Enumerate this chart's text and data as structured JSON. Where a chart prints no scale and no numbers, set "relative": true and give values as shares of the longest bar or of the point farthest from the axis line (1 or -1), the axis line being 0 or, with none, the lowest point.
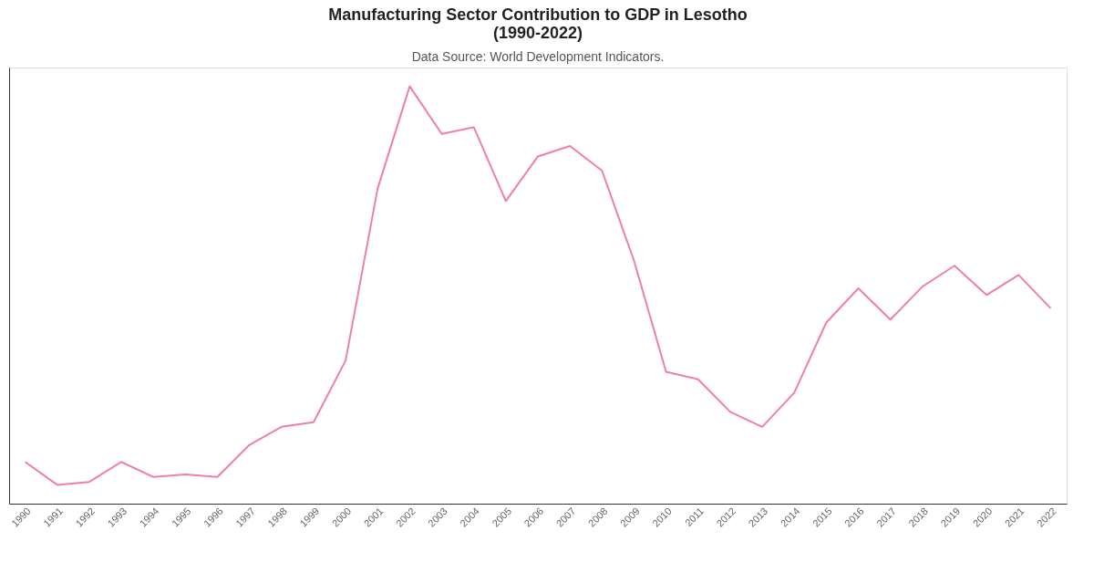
{
  "chart_data": {
    "type": "line",
    "title": [
      "Manufacturing Sector Contribution to GDP in Lesotho",
      "(1990-2022)"
    ],
    "subtitle": "Data Source: World Development Indicators.",
    "relative": true,
    "grid": false,
    "marker": "none",
    "line_style": "solid",
    "categories": [
      "1990",
      "1991",
      "1992",
      "1993",
      "1994",
      "1995",
      "1996",
      "1997",
      "1998",
      "1999",
      "2000",
      "2001",
      "2002",
      "2003",
      "2004",
      "2005",
      "2006",
      "2007",
      "2008",
      "2009",
      "2010",
      "2011",
      "2012",
      "2013",
      "2014",
      "2015",
      "2016",
      "2017",
      "2018",
      "2019",
      "2020",
      "2021",
      "2022"
    ],
    "series": [
      {
        "color": "#f07fa8",
        "values": [
          0.1,
          0.045,
          0.052,
          0.1,
          0.064,
          0.07,
          0.064,
          0.141,
          0.184,
          0.195,
          0.343,
          0.755,
          1,
          0.886,
          0.902,
          0.725,
          0.832,
          0.857,
          0.798,
          0.582,
          0.316,
          0.298,
          0.22,
          0.184,
          0.266,
          0.434,
          0.516,
          0.441,
          0.52,
          0.57,
          0.5,
          0.548,
          0.468
        ]
      }
    ]
  }
}
